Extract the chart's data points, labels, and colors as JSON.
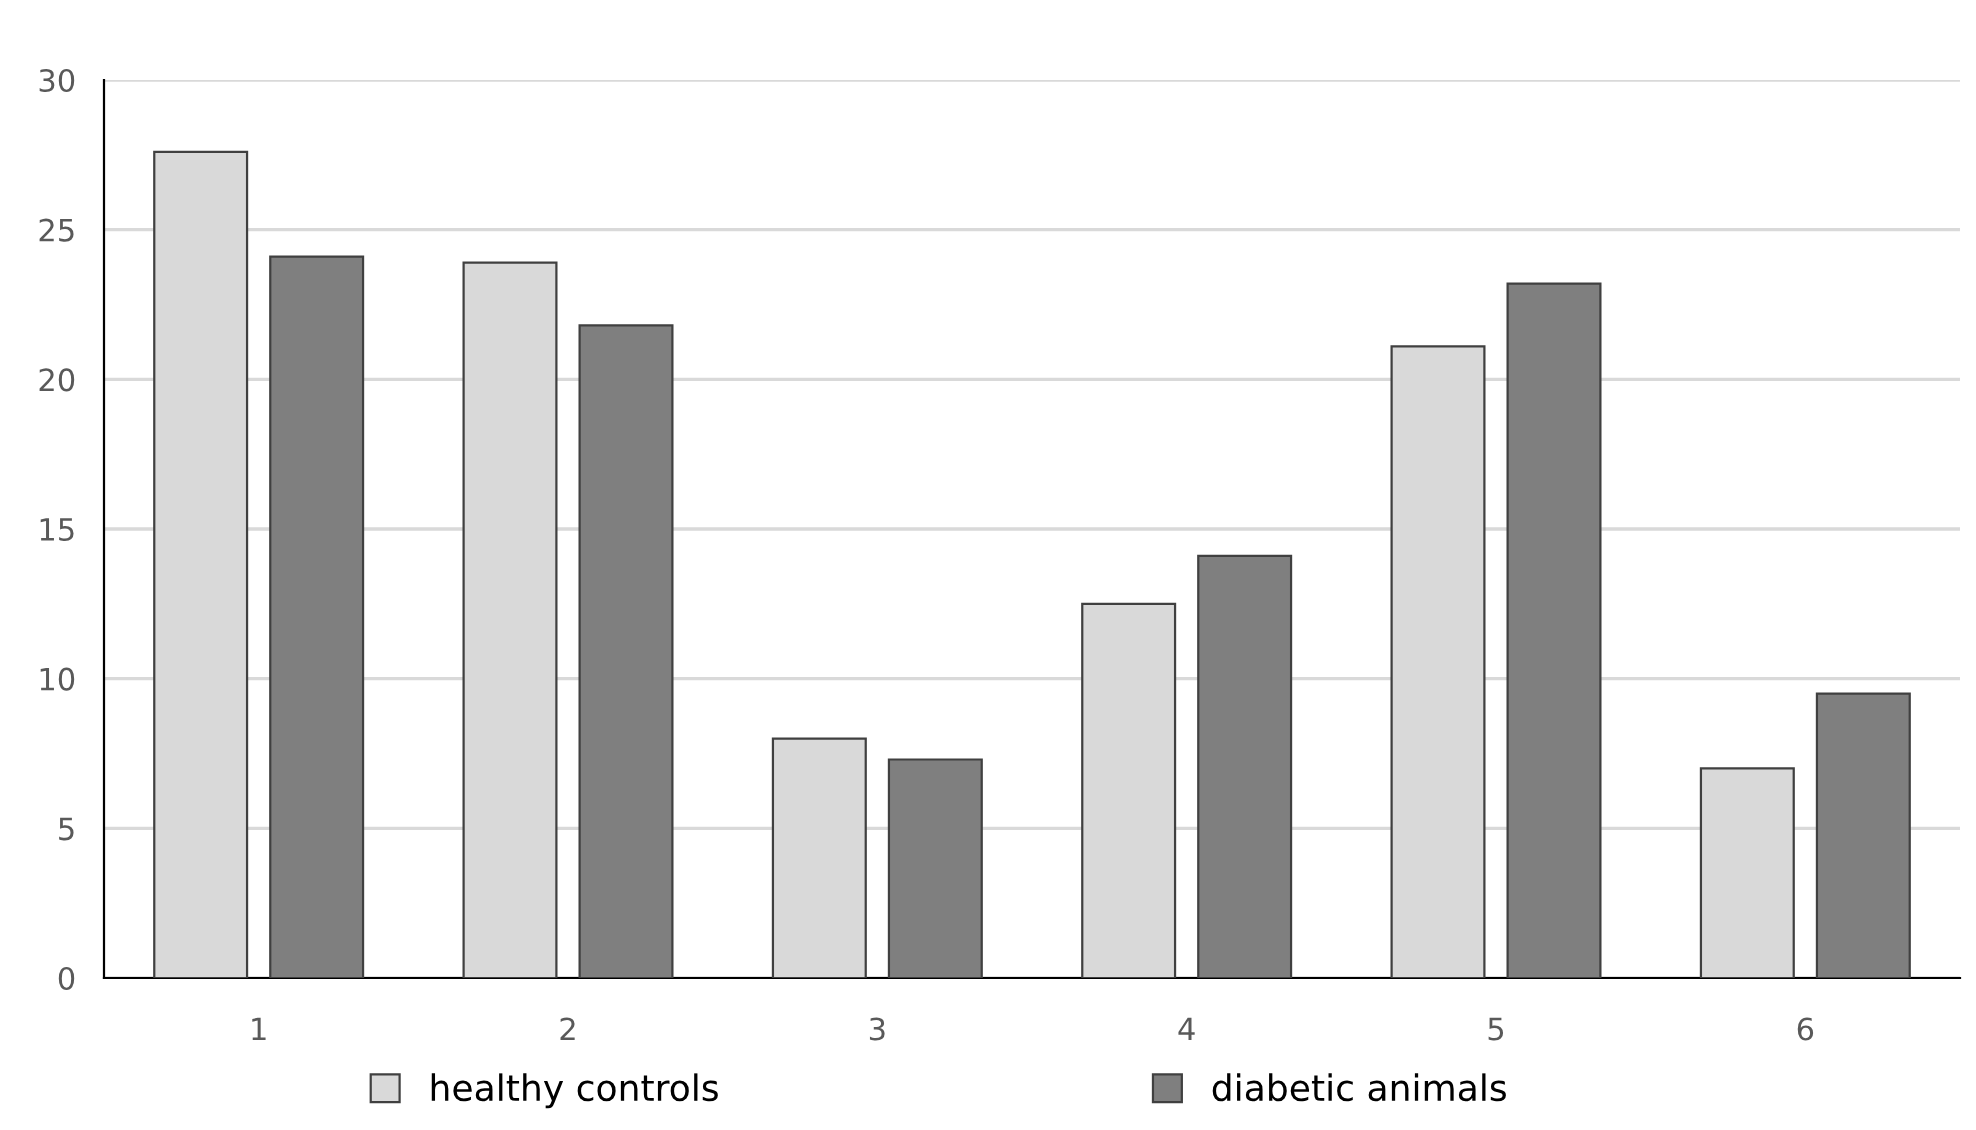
{
  "chart_data": {
    "type": "bar",
    "categories": [
      "1",
      "2",
      "3",
      "4",
      "5",
      "6"
    ],
    "series": [
      {
        "name": "healthy controls",
        "color": "#d9d9d9",
        "values": [
          27.6,
          23.9,
          8.0,
          12.5,
          21.1,
          7.0
        ]
      },
      {
        "name": "diabetic animals",
        "color": "#7f7f7f",
        "values": [
          24.1,
          21.8,
          7.3,
          14.1,
          23.2,
          9.5
        ]
      }
    ],
    "ylim": [
      0,
      30
    ],
    "yticks": [
      0,
      5,
      10,
      15,
      20,
      25,
      30
    ],
    "grid": "y",
    "legend": "bottom"
  }
}
